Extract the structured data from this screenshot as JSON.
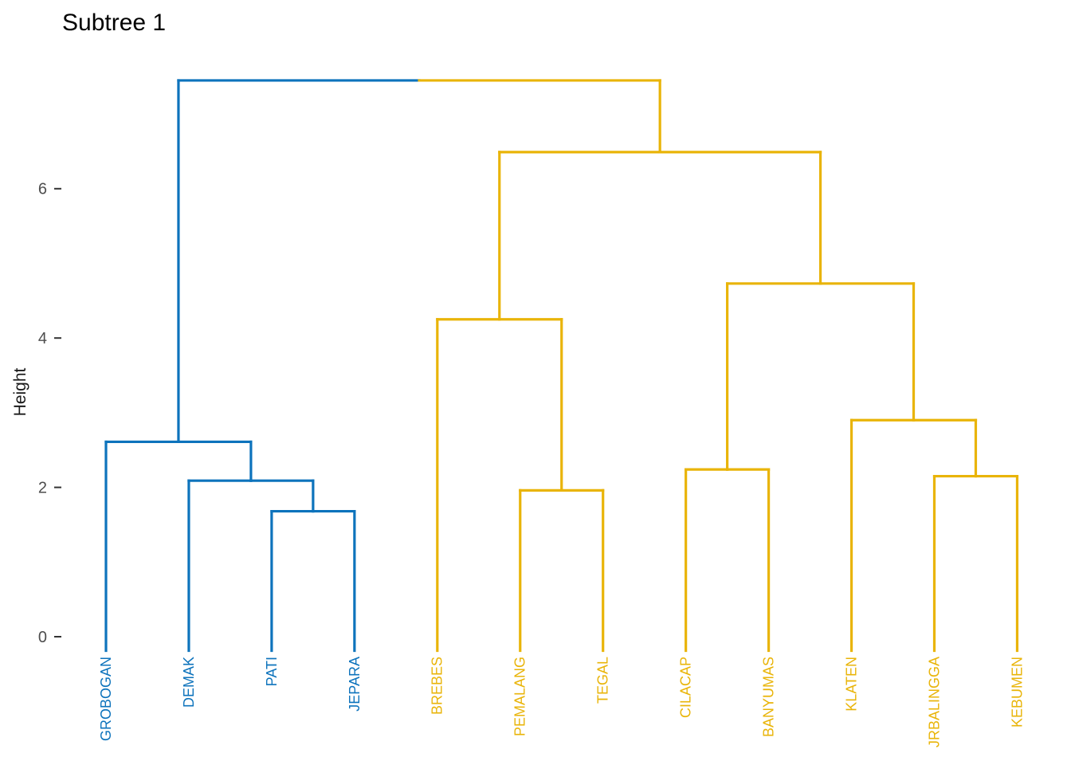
{
  "title": "Subtree 1",
  "chart_data": {
    "type": "dendrogram",
    "title": "Subtree 1",
    "ylabel": "Height",
    "yticks": [
      0,
      2,
      4,
      6
    ],
    "ylim": [
      0,
      7.45
    ],
    "grid": false,
    "legend": "none",
    "orientation": "vertical",
    "leaf_order": [
      "GROBOGAN",
      "DEMAK",
      "PATI",
      "JEPARA",
      "BREBES",
      "PEMALANG",
      "TEGAL",
      "CILACAP",
      "BANYUMAS",
      "KLATEN",
      "JRBALINGGA",
      "KEBUMEN"
    ],
    "clusters": [
      {
        "id": 1,
        "color": "#0D73BC",
        "members": [
          "GROBOGAN",
          "DEMAK",
          "PATI",
          "JEPARA"
        ]
      },
      {
        "id": 2,
        "color": "#E9B408",
        "members": [
          "BREBES",
          "PEMALANG",
          "TEGAL",
          "CILACAP",
          "BANYUMAS",
          "KLATEN",
          "JRBALINGGA",
          "KEBUMEN"
        ]
      }
    ],
    "tree": {
      "height": 7.45,
      "children": [
        {
          "height": 2.61,
          "cluster": 1,
          "children": [
            {
              "leaf": "GROBOGAN"
            },
            {
              "height": 2.09,
              "children": [
                {
                  "leaf": "DEMAK"
                },
                {
                  "height": 1.68,
                  "children": [
                    {
                      "leaf": "PATI"
                    },
                    {
                      "leaf": "JEPARA"
                    }
                  ]
                }
              ]
            }
          ]
        },
        {
          "height": 6.49,
          "cluster": 2,
          "children": [
            {
              "height": 4.25,
              "children": [
                {
                  "leaf": "BREBES"
                },
                {
                  "height": 1.96,
                  "children": [
                    {
                      "leaf": "PEMALANG"
                    },
                    {
                      "leaf": "TEGAL"
                    }
                  ]
                }
              ]
            },
            {
              "height": 4.73,
              "children": [
                {
                  "height": 2.24,
                  "children": [
                    {
                      "leaf": "CILACAP"
                    },
                    {
                      "leaf": "BANYUMAS"
                    }
                  ]
                },
                {
                  "height": 2.9,
                  "children": [
                    {
                      "leaf": "KLATEN"
                    },
                    {
                      "height": 2.15,
                      "children": [
                        {
                          "leaf": "JRBALINGGA"
                        },
                        {
                          "leaf": "KEBUMEN"
                        }
                      ]
                    }
                  ]
                }
              ]
            }
          ]
        }
      ]
    },
    "style": {
      "background": "#ffffff",
      "title_color": "#000000",
      "axis_title_color": "#1a1a1a",
      "axis_text_color": "#4d4d4d",
      "tick_color": "#333333",
      "leaf_font_size": 18,
      "tick_font_size": 20
    }
  }
}
